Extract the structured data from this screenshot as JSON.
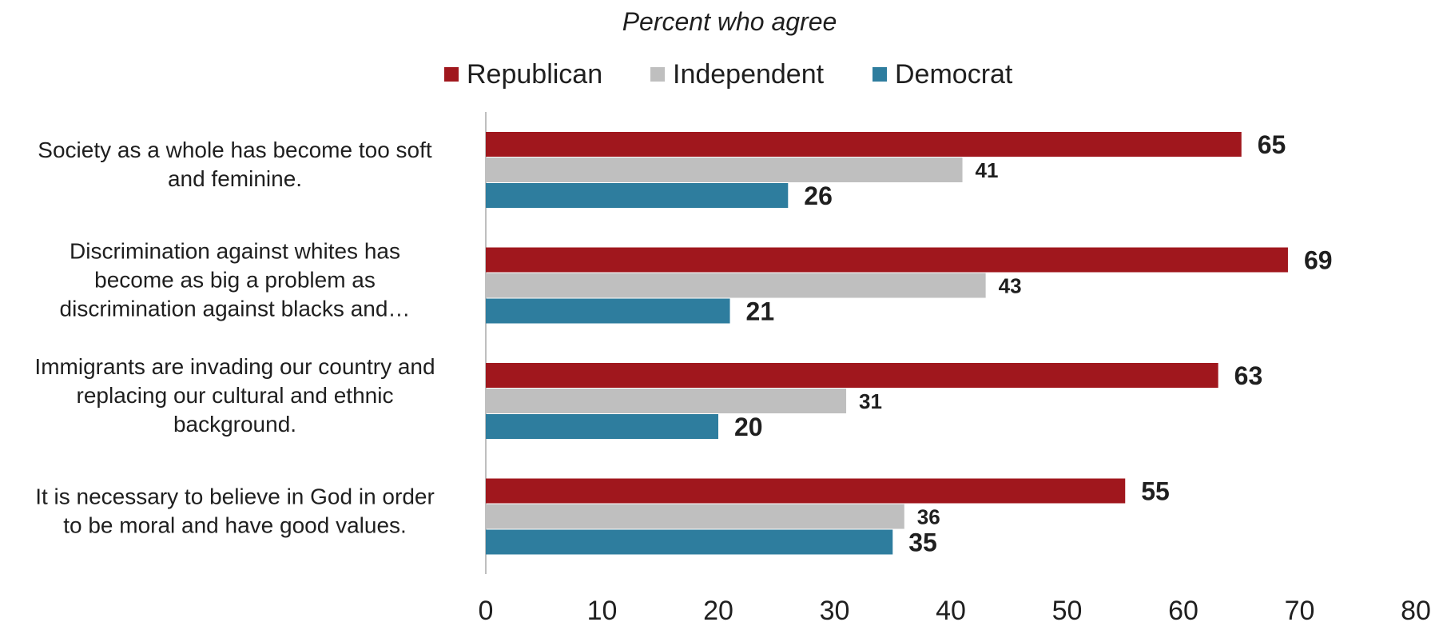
{
  "chart_data": {
    "type": "bar",
    "orientation": "horizontal",
    "title": "Percent who agree",
    "categories": [
      [
        "Society as a whole has become too soft",
        "and feminine."
      ],
      [
        "Discrimination against whites has",
        "become as big a problem as",
        "discrimination against blacks and…"
      ],
      [
        "Immigrants are invading our country and",
        "replacing our cultural and ethnic",
        "background."
      ],
      [
        "It is necessary to believe in God in order",
        "to be moral and have good values."
      ]
    ],
    "series": [
      {
        "name": "Republican",
        "color": "#a0171d",
        "values": [
          65,
          69,
          63,
          55
        ]
      },
      {
        "name": "Independent",
        "color": "#bfbfbf",
        "values": [
          41,
          43,
          31,
          36
        ]
      },
      {
        "name": "Democrat",
        "color": "#2e7d9e",
        "values": [
          26,
          21,
          20,
          35
        ]
      }
    ],
    "xlim": [
      0,
      80
    ],
    "xticks": [
      "0",
      "10",
      "20",
      "30",
      "40",
      "50",
      "60",
      "70",
      "80"
    ],
    "legend_position": "top",
    "grid": false,
    "data_labels": true
  }
}
